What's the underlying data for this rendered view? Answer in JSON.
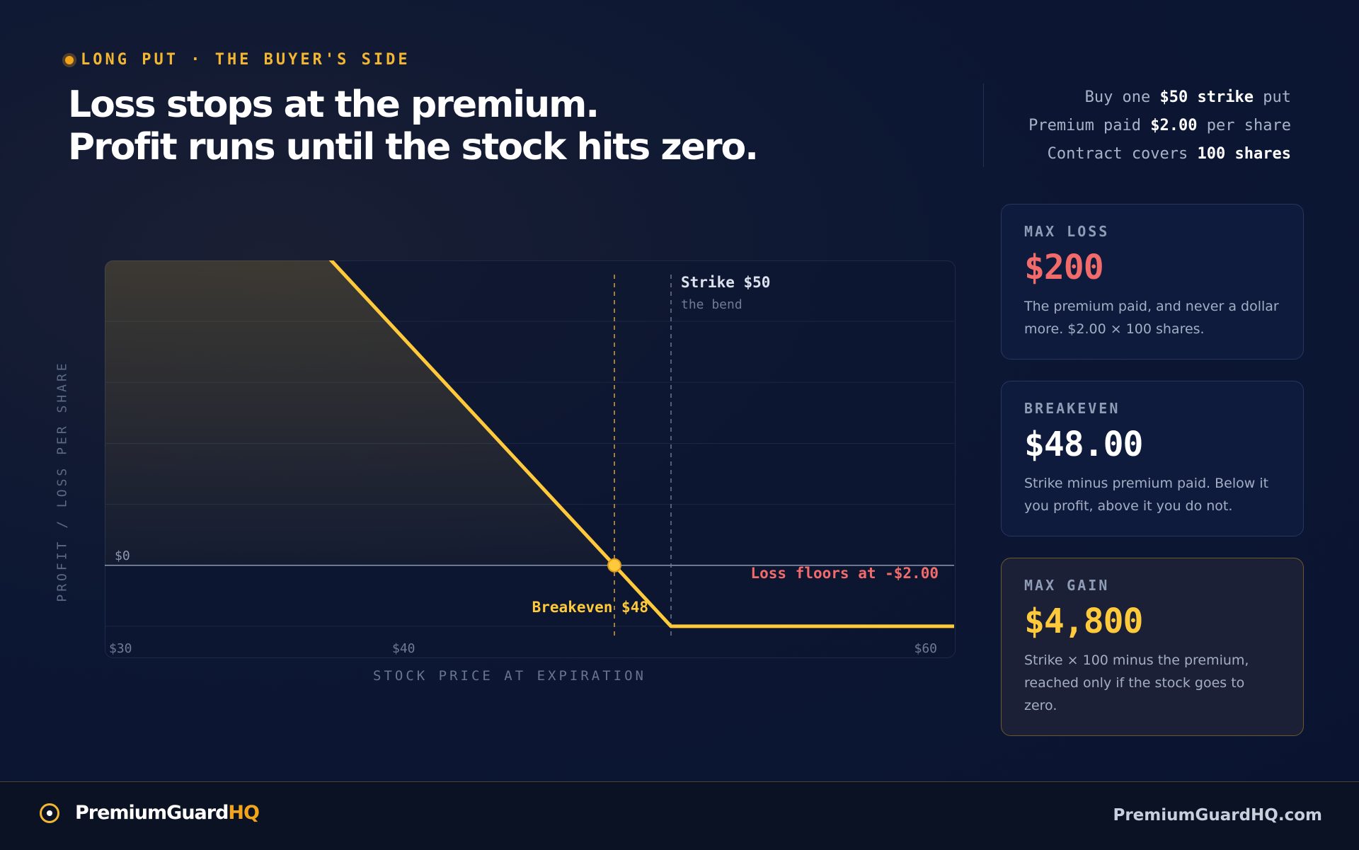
{
  "header": {
    "eyebrow": "LONG PUT · THE BUYER'S SIDE",
    "headline_line1": "Loss stops at the premium.",
    "headline_line2": "Profit runs until the stock hits zero."
  },
  "specs": {
    "line1_pre": "Buy one",
    "line1_bold": "$50 strike",
    "line1_post": "put",
    "line2_pre": "Premium paid",
    "line2_bold": "$2.00",
    "line2_post": "per share",
    "line3_pre": "Contract covers",
    "line3_bold": "100 shares"
  },
  "chart_data": {
    "type": "line",
    "title": "",
    "xlabel": "STOCK PRICE AT EXPIRATION",
    "ylabel": "PROFIT / LOSS PER SHARE",
    "xlim": [
      30,
      60
    ],
    "ylim": [
      -3,
      10
    ],
    "x_ticks": [
      {
        "value": 30,
        "label": "$30"
      },
      {
        "value": 40,
        "label": "$40"
      },
      {
        "value": 60,
        "label": "$60"
      }
    ],
    "zero_label": "$0",
    "grid": true,
    "series": [
      {
        "x": [
          30,
          48,
          50,
          60
        ],
        "y": [
          18,
          0,
          -2,
          -2
        ]
      }
    ],
    "annotations": {
      "strike": {
        "x": 50,
        "label": "Strike $50",
        "sublabel": "the bend"
      },
      "breakeven": {
        "x": 48,
        "label": "Breakeven $48"
      },
      "floor": {
        "y": -2,
        "label": "Loss floors at -$2.00"
      }
    },
    "colors": {
      "line": "#ffc93c",
      "loss": "#f26b6b",
      "axis": "#8d97b0",
      "grid": "#1b2745"
    }
  },
  "cards": [
    {
      "label": "MAX LOSS",
      "value": "$200",
      "desc": "The premium paid, and never a dollar more. $2.00 × 100 shares.",
      "color": "#f26b6b"
    },
    {
      "label": "BREAKEVEN",
      "value": "$48.00",
      "desc": "Strike minus premium paid. Below it you profit, above it you do not.",
      "color": "#ffffff"
    },
    {
      "label": "MAX GAIN",
      "value": "$4,800",
      "desc": "Strike × 100 minus the premium, reached only if the stock goes to zero.",
      "color": "#ffc93c"
    }
  ],
  "footer": {
    "brand_main": "PremiumGuard",
    "brand_accent": "HQ",
    "site": "PremiumGuardHQ.com"
  }
}
